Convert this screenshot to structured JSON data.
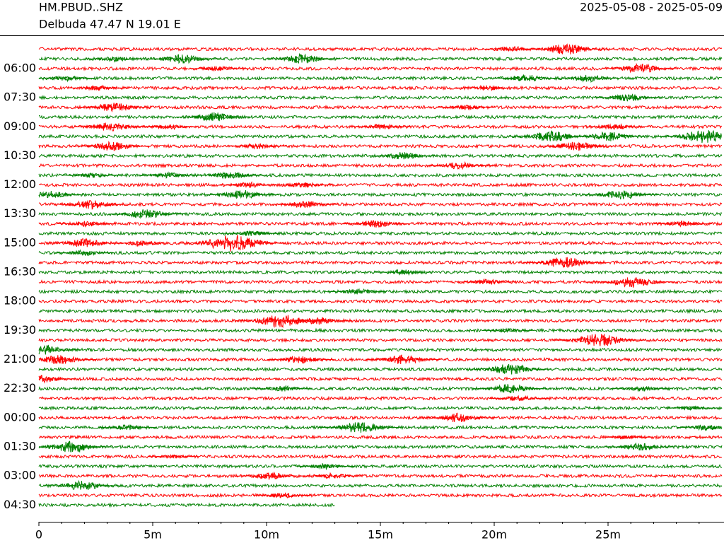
{
  "chart_data": {
    "type": "helicorder",
    "title": "HM.PBUD..SHZ",
    "subtitle": "Delbuda  47.47 N 19.01 E",
    "date_range": "2025-05-08 - 2025-05-09",
    "colors": [
      "#ff0000",
      "#008000"
    ],
    "categories": [
      null,
      null,
      "06:00",
      null,
      null,
      "07:30",
      null,
      null,
      "09:00",
      null,
      null,
      "10:30",
      null,
      null,
      "12:00",
      null,
      null,
      "13:30",
      null,
      null,
      "15:00",
      null,
      null,
      "16:30",
      null,
      null,
      "18:00",
      null,
      null,
      "19:30",
      null,
      null,
      "21:00",
      null,
      null,
      "22:30",
      null,
      null,
      "00:00",
      null,
      null,
      "01:30",
      null,
      null,
      "03:00",
      null,
      null,
      "04:30"
    ],
    "xlim": [
      0,
      30
    ],
    "xticks": [
      0,
      {
        "value": 5,
        "label": "5m"
      },
      {
        "value": 10,
        "label": "10m"
      },
      {
        "value": 15,
        "label": "15m"
      },
      {
        "value": 20,
        "label": "20m"
      },
      {
        "value": 25,
        "label": "25m"
      }
    ],
    "xminor_ticks": [
      1,
      2,
      3,
      4,
      6,
      7,
      8,
      9,
      11,
      12,
      13,
      14,
      16,
      17,
      18,
      19,
      21,
      22,
      23,
      24,
      26,
      27,
      28,
      29
    ],
    "last_row_xmax": 13,
    "events": [
      [
        [
          23.2,
          0.6
        ],
        [
          20.8,
          0.3
        ]
      ],
      [
        [
          6.3,
          0.5
        ],
        [
          11.6,
          0.5
        ],
        [
          3.3,
          0.3
        ]
      ],
      [
        [
          26.4,
          0.5
        ],
        [
          7.9,
          0.3
        ]
      ],
      [
        [
          1.2,
          0.3
        ],
        [
          21.4,
          0.4
        ],
        [
          24.1,
          0.4
        ]
      ],
      [
        [
          19.7,
          0.3
        ],
        [
          2.6,
          0.3
        ]
      ],
      [
        [
          25.9,
          0.4
        ]
      ],
      [
        [
          3.3,
          0.5
        ],
        [
          18.8,
          0.3
        ]
      ],
      [
        [
          7.7,
          0.5
        ]
      ],
      [
        [
          3.2,
          0.5
        ],
        [
          5.7,
          0.3
        ],
        [
          15.1,
          0.3
        ],
        [
          25.3,
          0.3
        ]
      ],
      [
        [
          22.5,
          0.6
        ],
        [
          25,
          0.5
        ],
        [
          29.2,
          0.7
        ]
      ],
      [
        [
          3.2,
          0.5
        ],
        [
          23.6,
          0.5
        ],
        [
          9.6,
          0.3
        ]
      ],
      [
        [
          16,
          0.4
        ]
      ],
      [
        [
          18.5,
          0.4
        ]
      ],
      [
        [
          2.3,
          0.3
        ],
        [
          8.4,
          0.4
        ],
        [
          5.7,
          0.3
        ]
      ],
      [
        [
          9.2,
          0.3
        ],
        [
          11.6,
          0.3
        ]
      ],
      [
        [
          0.5,
          0.4
        ],
        [
          8.9,
          0.5
        ],
        [
          25.6,
          0.5
        ]
      ],
      [
        [
          2.3,
          0.5
        ],
        [
          11.7,
          0.4
        ]
      ],
      [
        [
          4.7,
          0.5
        ]
      ],
      [
        [
          2.1,
          0.3
        ],
        [
          14.8,
          0.4
        ],
        [
          28.3,
          0.3
        ]
      ],
      [
        [
          9.3,
          0.3
        ]
      ],
      [
        [
          2,
          0.5
        ],
        [
          8.5,
          0.9
        ],
        [
          4.5,
          0.3
        ]
      ],
      [
        [
          2,
          0.3
        ]
      ],
      [
        [
          23.1,
          0.6
        ]
      ],
      [
        [
          16,
          0.3
        ]
      ],
      [
        [
          26.1,
          0.6
        ],
        [
          19.7,
          0.3
        ]
      ],
      [
        [
          14,
          0.3
        ]
      ],
      [],
      [],
      [
        [
          10.6,
          0.7
        ],
        [
          12.3,
          0.4
        ]
      ],
      [
        [
          20.6,
          0.2
        ]
      ],
      [
        [
          24.6,
          0.7
        ]
      ],
      [
        [
          0.2,
          0.5
        ]
      ],
      [
        [
          0.9,
          0.5
        ],
        [
          11.5,
          0.4
        ],
        [
          16,
          0.5
        ]
      ],
      [
        [
          20.7,
          0.6
        ]
      ],
      [
        [
          0.2,
          0.4
        ]
      ],
      [
        [
          20.7,
          0.5
        ],
        [
          10.7,
          0.3
        ],
        [
          26.4,
          0.3
        ]
      ],
      [
        [
          21.1,
          0.3
        ]
      ],
      [
        [
          28.6,
          0.2
        ]
      ],
      [
        [
          18.4,
          0.5
        ]
      ],
      [
        [
          14.1,
          0.6
        ],
        [
          3.9,
          0.3
        ],
        [
          29.3,
          0.3
        ]
      ],
      [
        [
          25.8,
          0.2
        ]
      ],
      [
        [
          1.4,
          0.6
        ],
        [
          26.4,
          0.4
        ]
      ],
      [
        [
          5.9,
          0.2
        ]
      ],
      [
        [
          12.6,
          0.3
        ]
      ],
      [
        [
          10.1,
          0.4
        ],
        [
          12.9,
          0.3
        ]
      ],
      [
        [
          1.9,
          0.5
        ]
      ],
      [
        [
          10.7,
          0.3
        ]
      ],
      []
    ]
  }
}
